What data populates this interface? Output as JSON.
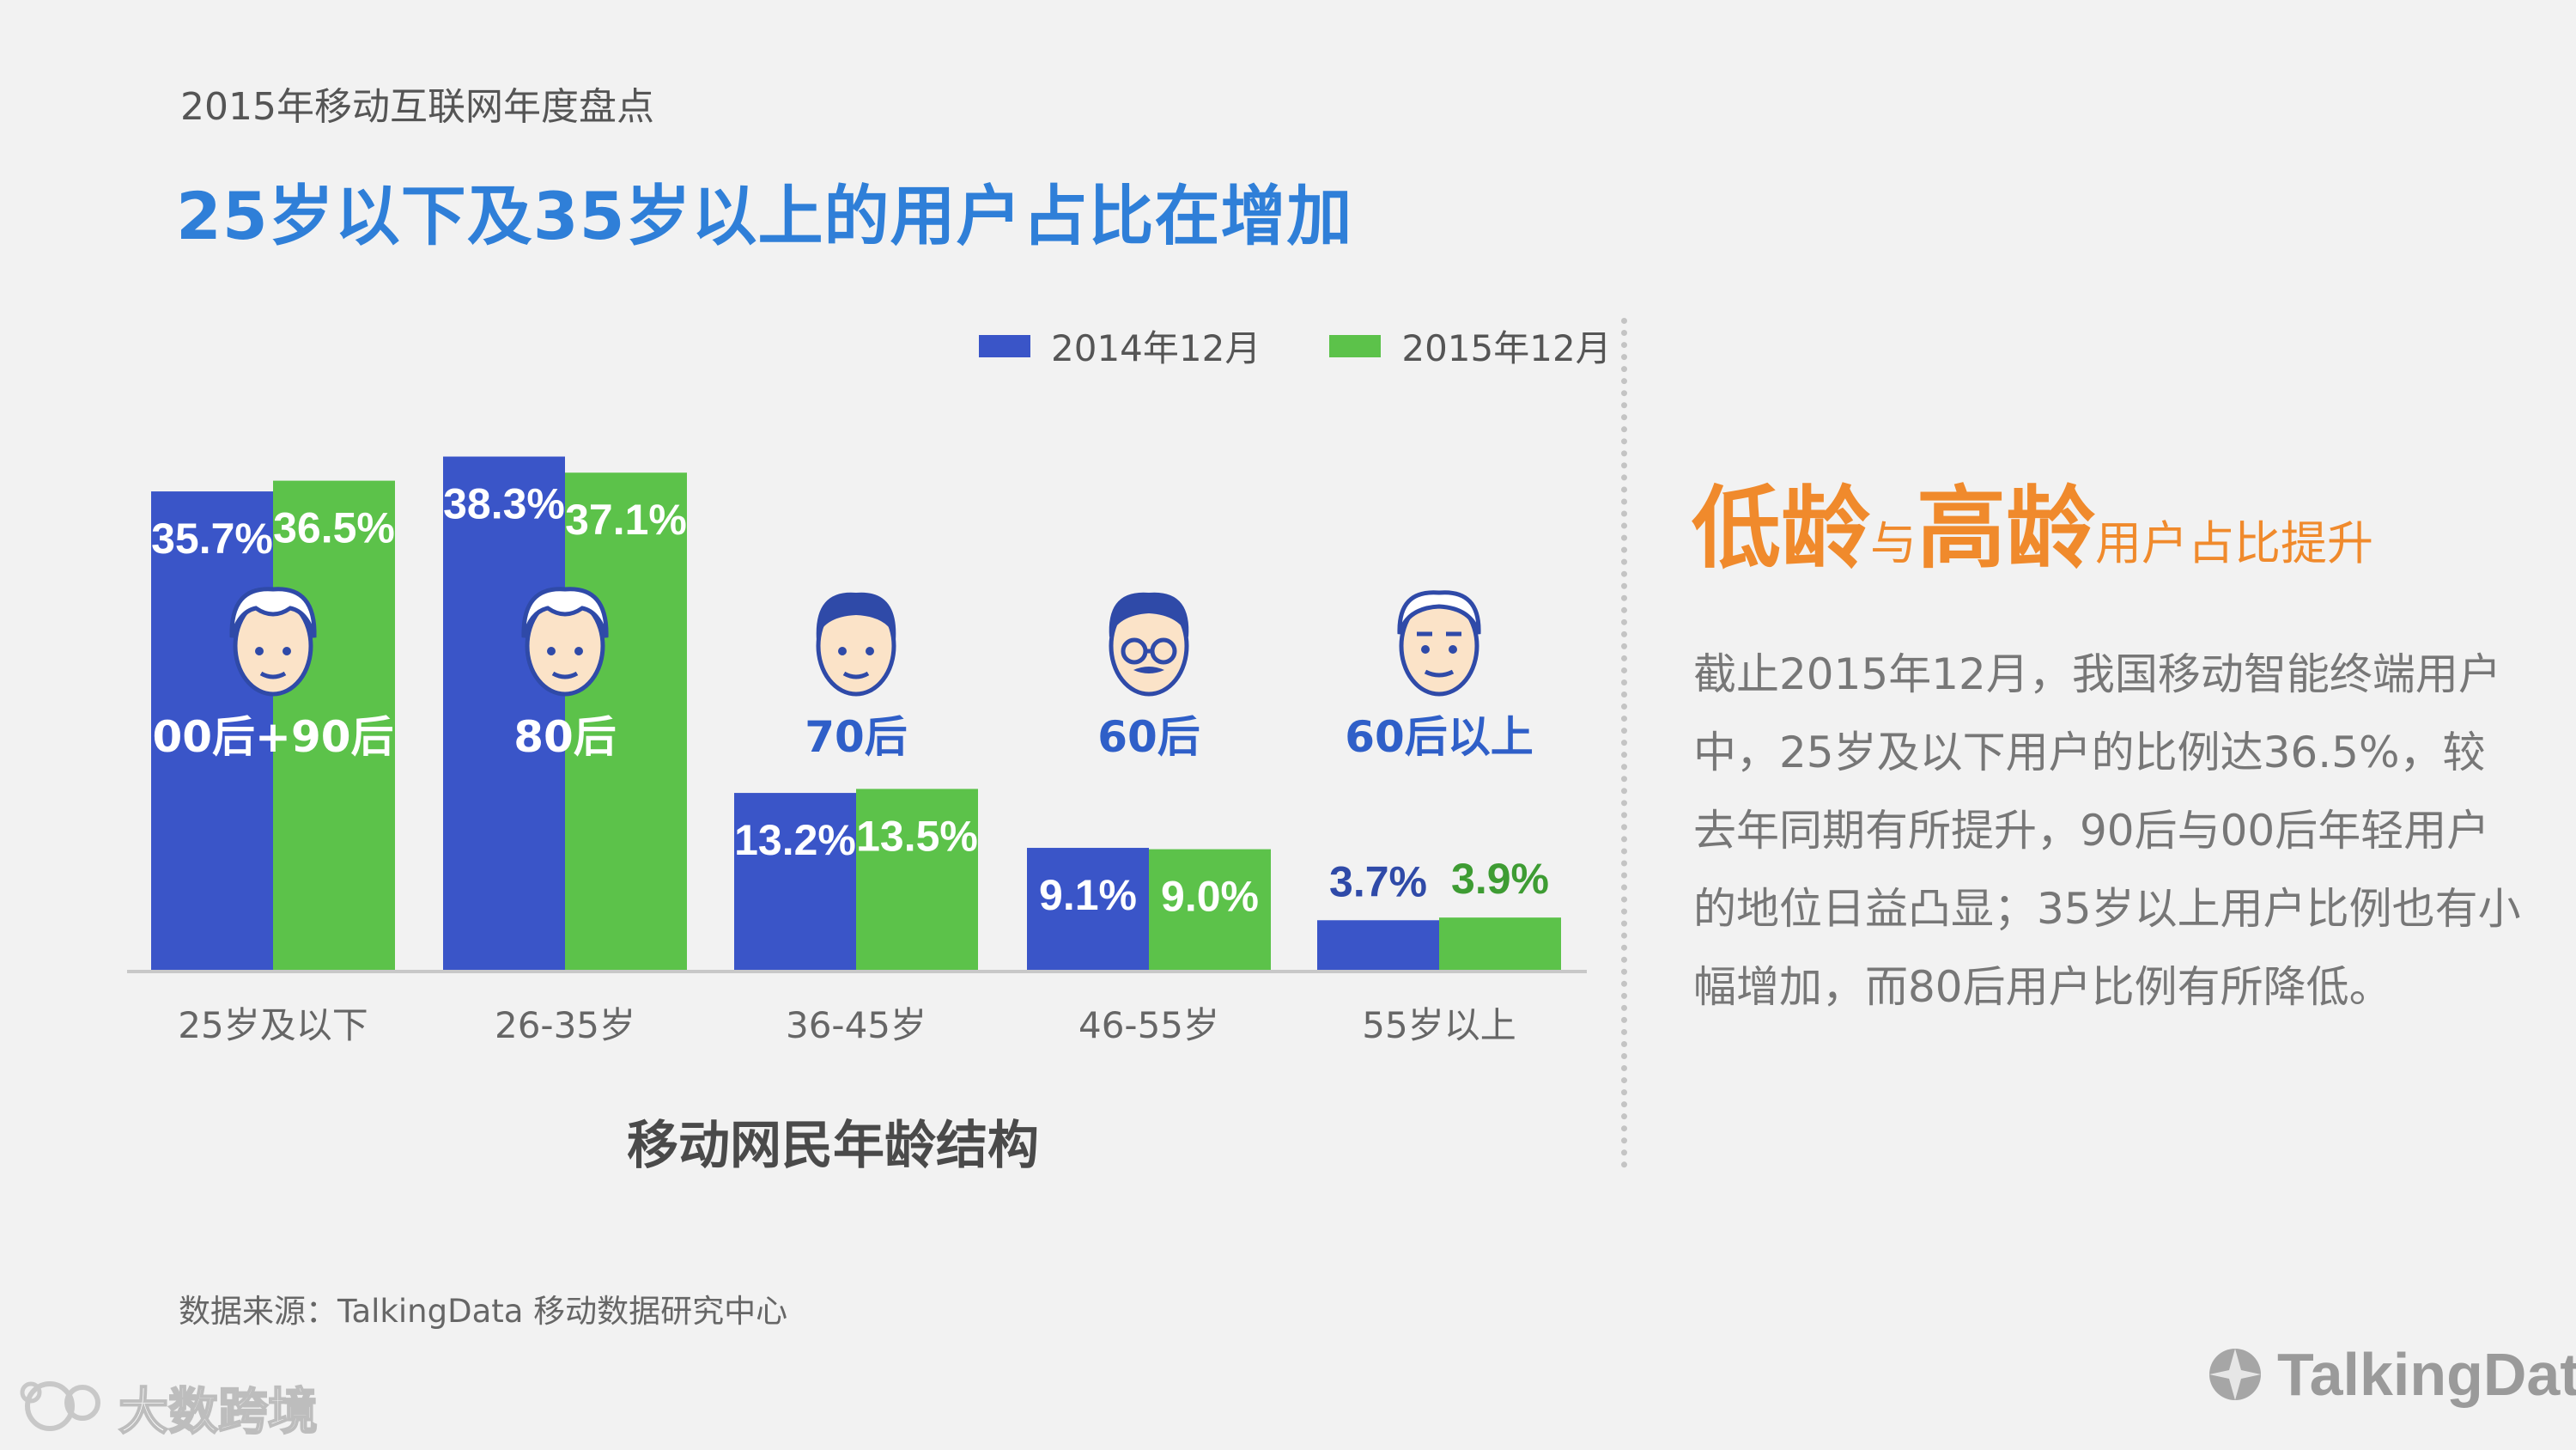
{
  "header": {
    "subtitle": "2015年移动互联网年度盘点",
    "headline": "25岁以下及35岁以上的用户占比在增加"
  },
  "colors": {
    "series_2014": "#3a55c8",
    "series_2015": "#5cc24a",
    "headline": "#2f7fd8",
    "accent_orange": "#f08a2c"
  },
  "chart_data": {
    "type": "bar",
    "title": "移动网民年龄结构",
    "categories": [
      "25岁及以下",
      "26-35岁",
      "36-45岁",
      "46-55岁",
      "55岁以上"
    ],
    "series": [
      {
        "name": "2014年12月",
        "values": [
          35.7,
          38.3,
          13.2,
          9.1,
          3.7
        ],
        "color": "#3a55c8"
      },
      {
        "name": "2015年12月",
        "values": [
          36.5,
          37.1,
          13.5,
          9.0,
          3.9
        ],
        "color": "#5cc24a"
      }
    ],
    "value_labels": {
      "series_2014": [
        "35.7%",
        "38.3%",
        "13.2%",
        "9.1%",
        "3.7%"
      ],
      "series_2015": [
        "36.5%",
        "37.1%",
        "13.5%",
        "9.0%",
        "3.9%"
      ]
    },
    "group_labels": [
      "00后+90后",
      "80后",
      "70后",
      "60后",
      "60后以上"
    ],
    "group_icons": [
      "young-face-icon",
      "young-face-icon",
      "man-face-icon",
      "glasses-face-icon",
      "elder-face-icon"
    ],
    "ylim": [
      0,
      40
    ],
    "grid": false,
    "legend_position": "top-right"
  },
  "side": {
    "heading_part1": "低龄",
    "heading_part2": "与",
    "heading_part3": "高龄",
    "heading_part4": "用户占比提升",
    "body": "截止2015年12月，我国移动智能终端用户中，25岁及以下用户的比例达36.5%，较去年同期有所提升，90后与00后年轻用户的地位日益凸显；35岁以上用户比例也有小幅增加，而80后用户比例有所降低。"
  },
  "footer": {
    "source": "数据来源：TalkingData 移动数据研究中心",
    "brand_left": "大数跨境",
    "brand_right": "TalkingData"
  }
}
